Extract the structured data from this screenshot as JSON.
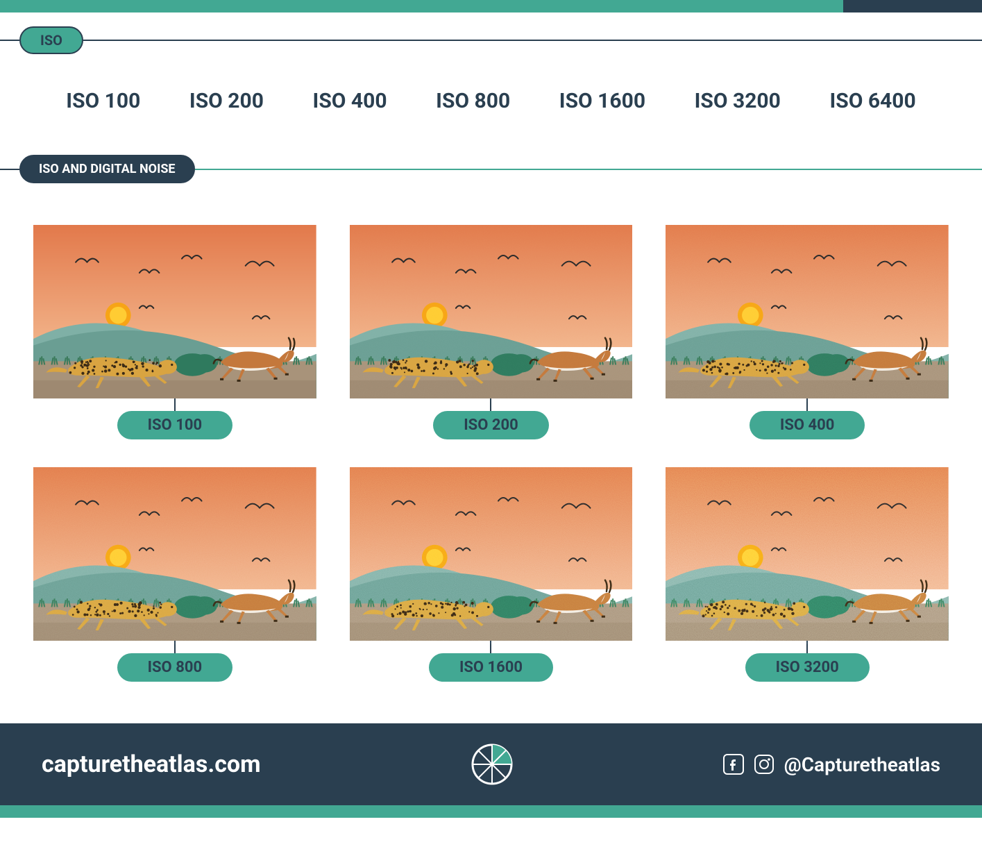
{
  "colors": {
    "teal": "#42a893",
    "dark": "#2a3f50",
    "white": "#ffffff",
    "sky_top": "#e2784a",
    "sky_bottom": "#f2b48a",
    "hill_back": "#7fb0a6",
    "hill_front": "#6a9e93",
    "ground": "#a8937a",
    "ground_dark": "#8f7b64",
    "grass": "#3a7a5a",
    "sun": "#f7a416",
    "sun_inner": "#ffcc33",
    "bush": "#2f7a5e",
    "cheetah_body": "#d9a441",
    "cheetah_spot": "#3a2a16",
    "gazelle_body": "#c4783c",
    "gazelle_white": "#f4ede2",
    "gazelle_horn": "#3a2a16",
    "bird": "#2a2a2a"
  },
  "header1": {
    "label": "ISO"
  },
  "iso_scale": [
    "ISO 100",
    "ISO 200",
    "ISO 400",
    "ISO 800",
    "ISO 1600",
    "ISO 3200",
    "ISO 6400"
  ],
  "header2": {
    "label": "ISO AND DIGITAL NOISE"
  },
  "cards": [
    {
      "label": "ISO 100",
      "noise_opacity": 0.0,
      "noise_freq": 0.9
    },
    {
      "label": "ISO 200",
      "noise_opacity": 0.1,
      "noise_freq": 0.9
    },
    {
      "label": "ISO 400",
      "noise_opacity": 0.2,
      "noise_freq": 0.95
    },
    {
      "label": "ISO 800",
      "noise_opacity": 0.32,
      "noise_freq": 1.0
    },
    {
      "label": "ISO 1600",
      "noise_opacity": 0.48,
      "noise_freq": 1.05
    },
    {
      "label": "ISO 3200",
      "noise_opacity": 0.7,
      "noise_freq": 1.1
    }
  ],
  "footer": {
    "site": "capturetheatlas.com",
    "handle": "@Capturetheatlas"
  }
}
